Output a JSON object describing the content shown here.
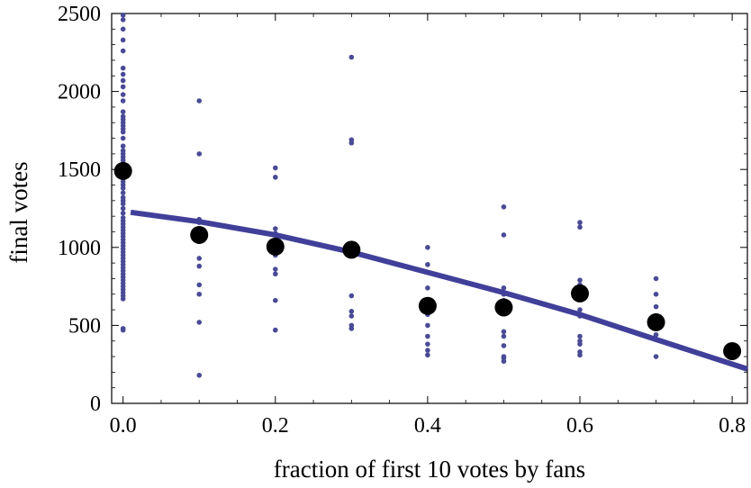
{
  "chart_data": {
    "type": "scatter",
    "title": "",
    "xlabel": "fraction of first 10 votes by fans",
    "ylabel": "final votes",
    "xlim": [
      -0.015,
      0.82
    ],
    "ylim": [
      0,
      2500
    ],
    "x_ticks": [
      0.0,
      0.2,
      0.4,
      0.6,
      0.8
    ],
    "x_tick_labels": [
      "0.0",
      "0.2",
      "0.4",
      "0.6",
      "0.8"
    ],
    "y_ticks": [
      0,
      500,
      1000,
      1500,
      2000,
      2500
    ],
    "y_tick_labels": [
      "0",
      "500",
      "1000",
      "1500",
      "2000",
      "2500"
    ],
    "grid": false,
    "legend": "none",
    "colors": {
      "points": "#4a4a96",
      "fit_line": "#40409a",
      "means": "#000000"
    },
    "series": [
      {
        "kind": "individual-points",
        "points": [
          [
            0.0,
            2490
          ],
          [
            0.0,
            2460
          ],
          [
            0.0,
            2400
          ],
          [
            0.0,
            2330
          ],
          [
            0.0,
            2260
          ],
          [
            0.0,
            2150
          ],
          [
            0.0,
            2110
          ],
          [
            0.0,
            2070
          ],
          [
            0.0,
            2030
          ],
          [
            0.0,
            1980
          ],
          [
            0.0,
            1940
          ],
          [
            0.0,
            1870
          ],
          [
            0.0,
            1840
          ],
          [
            0.0,
            1820
          ],
          [
            0.0,
            1800
          ],
          [
            0.0,
            1780
          ],
          [
            0.0,
            1760
          ],
          [
            0.0,
            1740
          ],
          [
            0.0,
            1700
          ],
          [
            0.0,
            1650
          ],
          [
            0.0,
            1620
          ],
          [
            0.0,
            1600
          ],
          [
            0.0,
            1580
          ],
          [
            0.0,
            1560
          ],
          [
            0.0,
            1540
          ],
          [
            0.0,
            1520
          ],
          [
            0.0,
            1500
          ],
          [
            0.0,
            1480
          ],
          [
            0.0,
            1460
          ],
          [
            0.0,
            1440
          ],
          [
            0.0,
            1420
          ],
          [
            0.0,
            1400
          ],
          [
            0.0,
            1380
          ],
          [
            0.0,
            1350
          ],
          [
            0.0,
            1320
          ],
          [
            0.0,
            1300
          ],
          [
            0.0,
            1280
          ],
          [
            0.0,
            1250
          ],
          [
            0.0,
            1220
          ],
          [
            0.0,
            1190
          ],
          [
            0.0,
            1170
          ],
          [
            0.0,
            1150
          ],
          [
            0.0,
            1130
          ],
          [
            0.0,
            1110
          ],
          [
            0.0,
            1090
          ],
          [
            0.0,
            1070
          ],
          [
            0.0,
            1050
          ],
          [
            0.0,
            1030
          ],
          [
            0.0,
            1010
          ],
          [
            0.0,
            990
          ],
          [
            0.0,
            970
          ],
          [
            0.0,
            950
          ],
          [
            0.0,
            930
          ],
          [
            0.0,
            910
          ],
          [
            0.0,
            890
          ],
          [
            0.0,
            870
          ],
          [
            0.0,
            850
          ],
          [
            0.0,
            830
          ],
          [
            0.0,
            810
          ],
          [
            0.0,
            790
          ],
          [
            0.0,
            770
          ],
          [
            0.0,
            750
          ],
          [
            0.0,
            730
          ],
          [
            0.0,
            710
          ],
          [
            0.0,
            690
          ],
          [
            0.0,
            670
          ],
          [
            0.0,
            480
          ],
          [
            0.0,
            470
          ],
          [
            0.1,
            1940
          ],
          [
            0.1,
            1600
          ],
          [
            0.1,
            1180
          ],
          [
            0.1,
            1160
          ],
          [
            0.1,
            1100
          ],
          [
            0.1,
            1060
          ],
          [
            0.1,
            930
          ],
          [
            0.1,
            880
          ],
          [
            0.1,
            760
          ],
          [
            0.1,
            700
          ],
          [
            0.1,
            520
          ],
          [
            0.1,
            180
          ],
          [
            0.2,
            1510
          ],
          [
            0.2,
            1450
          ],
          [
            0.2,
            1120
          ],
          [
            0.2,
            1090
          ],
          [
            0.2,
            1040
          ],
          [
            0.2,
            990
          ],
          [
            0.2,
            950
          ],
          [
            0.2,
            860
          ],
          [
            0.2,
            830
          ],
          [
            0.2,
            660
          ],
          [
            0.2,
            470
          ],
          [
            0.3,
            2220
          ],
          [
            0.3,
            1690
          ],
          [
            0.3,
            1670
          ],
          [
            0.3,
            1010
          ],
          [
            0.3,
            970
          ],
          [
            0.3,
            690
          ],
          [
            0.3,
            590
          ],
          [
            0.3,
            560
          ],
          [
            0.3,
            500
          ],
          [
            0.3,
            480
          ],
          [
            0.4,
            1000
          ],
          [
            0.4,
            890
          ],
          [
            0.4,
            740
          ],
          [
            0.4,
            640
          ],
          [
            0.4,
            570
          ],
          [
            0.4,
            500
          ],
          [
            0.4,
            430
          ],
          [
            0.4,
            380
          ],
          [
            0.4,
            340
          ],
          [
            0.4,
            310
          ],
          [
            0.5,
            1260
          ],
          [
            0.5,
            1080
          ],
          [
            0.5,
            740
          ],
          [
            0.5,
            700
          ],
          [
            0.5,
            660
          ],
          [
            0.5,
            600
          ],
          [
            0.5,
            580
          ],
          [
            0.5,
            460
          ],
          [
            0.5,
            430
          ],
          [
            0.5,
            370
          ],
          [
            0.5,
            300
          ],
          [
            0.5,
            290
          ],
          [
            0.5,
            270
          ],
          [
            0.6,
            1160
          ],
          [
            0.6,
            1130
          ],
          [
            0.6,
            790
          ],
          [
            0.6,
            760
          ],
          [
            0.6,
            700
          ],
          [
            0.6,
            600
          ],
          [
            0.6,
            560
          ],
          [
            0.6,
            430
          ],
          [
            0.6,
            400
          ],
          [
            0.6,
            380
          ],
          [
            0.6,
            330
          ],
          [
            0.6,
            310
          ],
          [
            0.7,
            800
          ],
          [
            0.7,
            700
          ],
          [
            0.7,
            620
          ],
          [
            0.7,
            540
          ],
          [
            0.7,
            500
          ],
          [
            0.7,
            440
          ],
          [
            0.7,
            410
          ],
          [
            0.7,
            300
          ]
        ]
      },
      {
        "kind": "means",
        "points": [
          [
            0.0,
            1490
          ],
          [
            0.1,
            1080
          ],
          [
            0.2,
            1005
          ],
          [
            0.3,
            985
          ],
          [
            0.4,
            625
          ],
          [
            0.5,
            615
          ],
          [
            0.6,
            705
          ],
          [
            0.7,
            520
          ],
          [
            0.8,
            335
          ]
        ]
      },
      {
        "kind": "fit-line",
        "points": [
          [
            0.01,
            1225
          ],
          [
            0.1,
            1165
          ],
          [
            0.2,
            1080
          ],
          [
            0.3,
            970
          ],
          [
            0.4,
            840
          ],
          [
            0.5,
            710
          ],
          [
            0.6,
            570
          ],
          [
            0.7,
            410
          ],
          [
            0.82,
            220
          ]
        ]
      }
    ]
  }
}
